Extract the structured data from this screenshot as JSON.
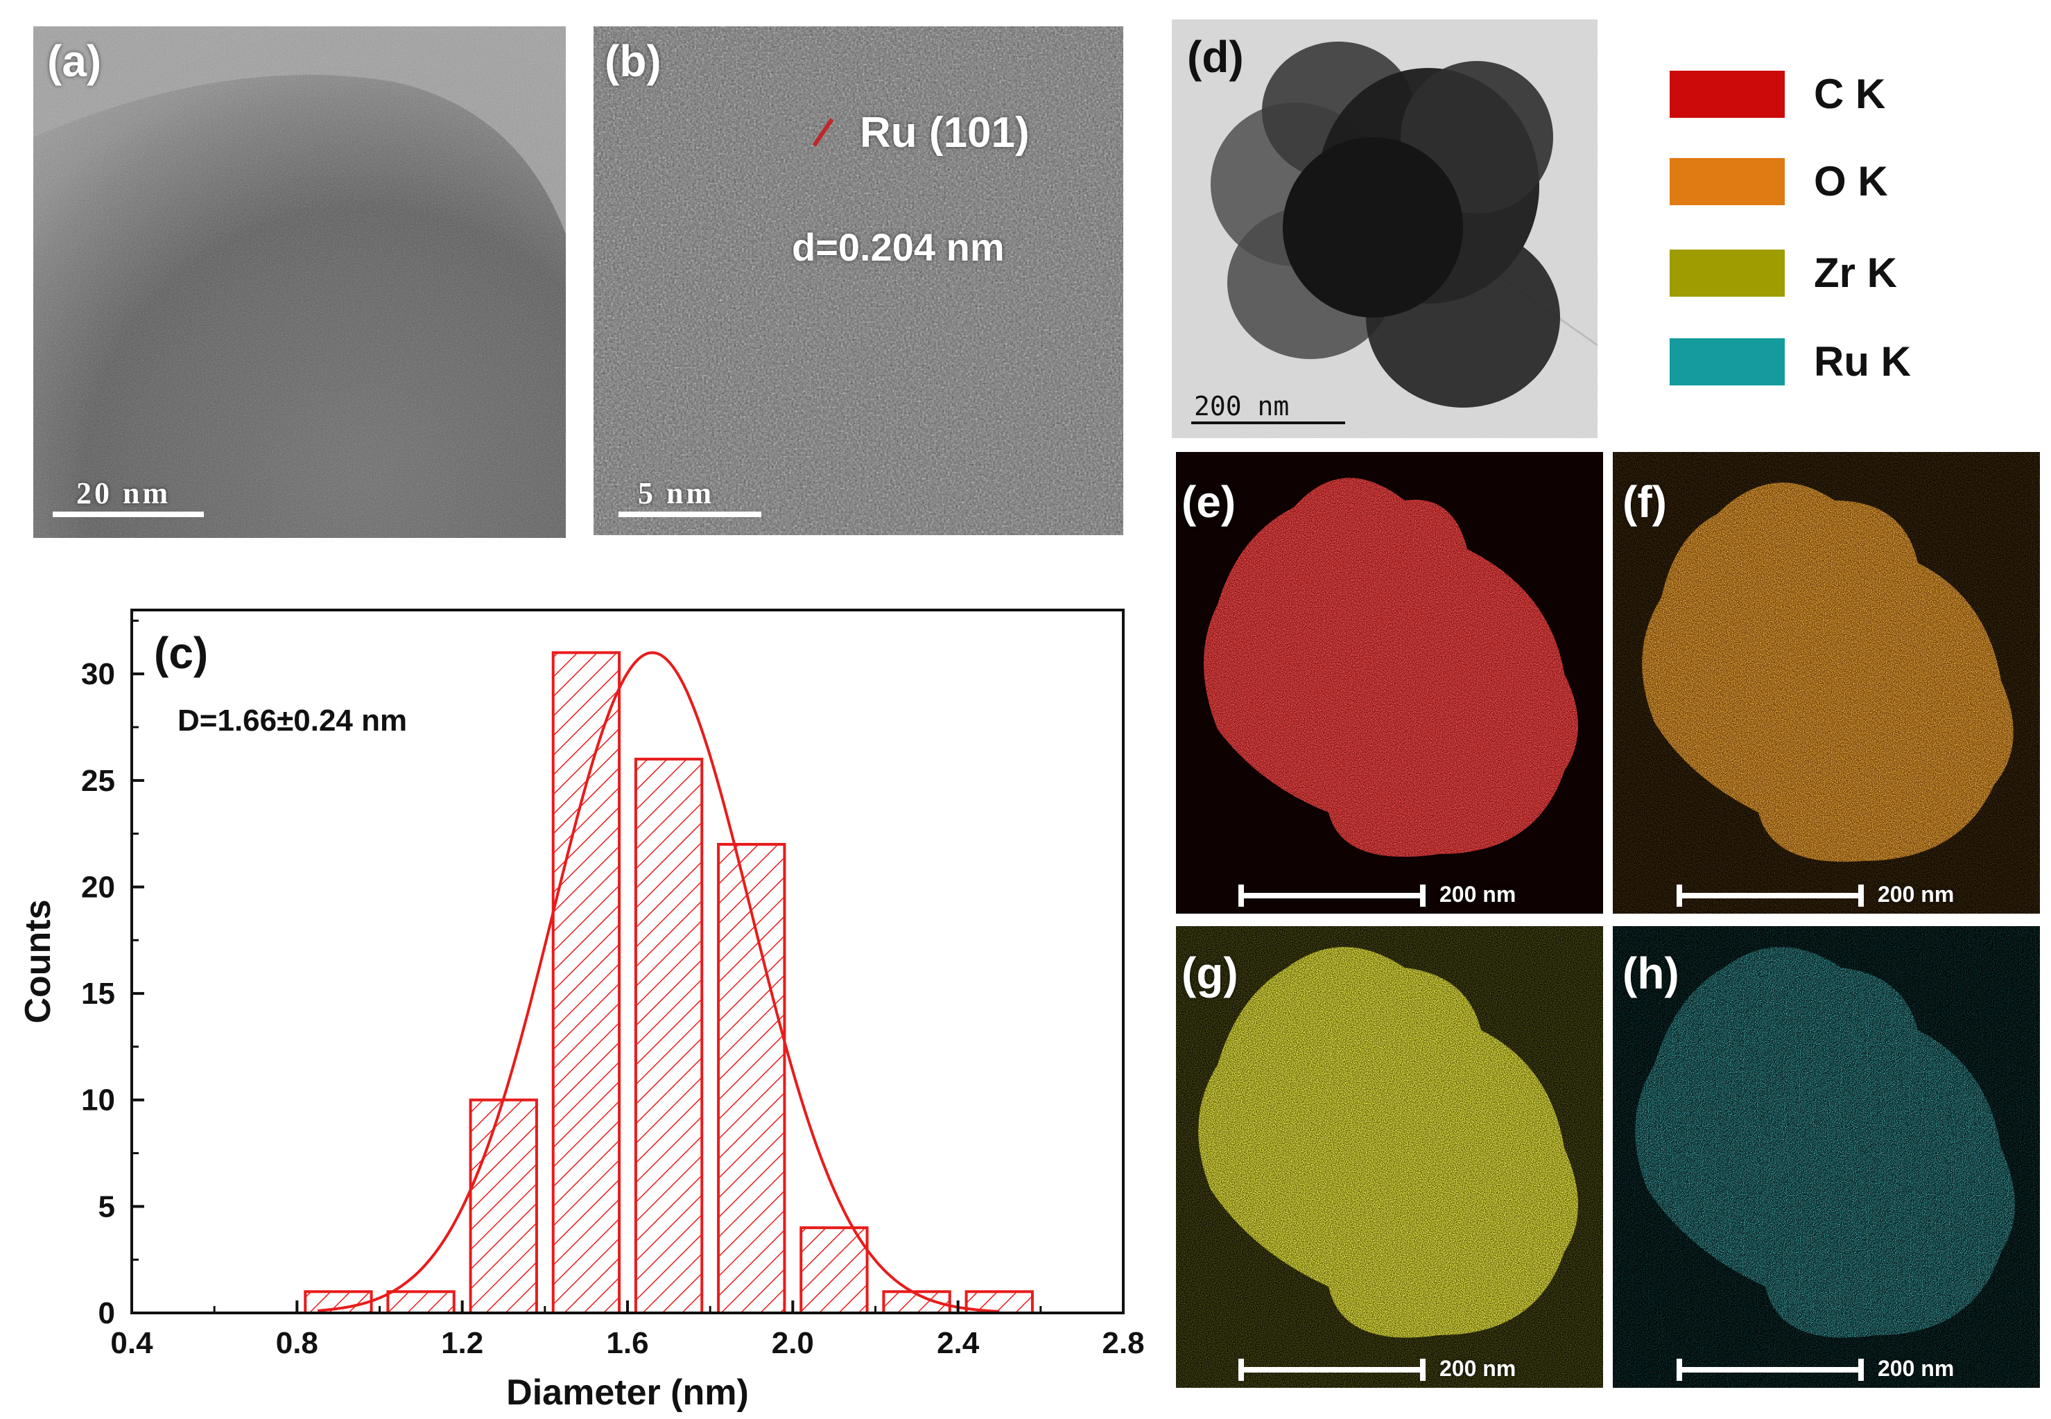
{
  "panels": {
    "a": {
      "label": "(a)",
      "scale": "20 nm"
    },
    "b": {
      "label": "(b)",
      "scale": "5 nm",
      "annotation": "Ru (101)",
      "spacing": "d=0.204 nm"
    },
    "d": {
      "label": "(d)",
      "scale": "200 nm"
    },
    "e": {
      "label": "(e)",
      "scale": "200 nm",
      "color": "#dd1b1b"
    },
    "f": {
      "label": "(f)",
      "scale": "200 nm",
      "color": "#e07a12"
    },
    "g": {
      "label": "(g)",
      "scale": "200 nm",
      "color": "#b5b318"
    },
    "h": {
      "label": "(h)",
      "scale": "200 nm",
      "color": "#1aa5a8"
    }
  },
  "legend": [
    {
      "label": "C K",
      "color": "#cc0a0a"
    },
    {
      "label": "O K",
      "color": "#e07a12"
    },
    {
      "label": "Zr K",
      "color": "#9e9c00"
    },
    {
      "label": "Ru K",
      "color": "#149b9e"
    }
  ],
  "chart_data": {
    "type": "bar",
    "panel_label": "(c)",
    "annotation": "D=1.66±0.24 nm",
    "xlabel": "Diameter (nm)",
    "ylabel": "Counts",
    "xlim": [
      0.4,
      2.8
    ],
    "ylim": [
      0,
      33
    ],
    "x_ticks": [
      "0.4",
      "0.8",
      "1.2",
      "1.6",
      "2.0",
      "2.4",
      "2.8"
    ],
    "y_ticks": [
      "0",
      "5",
      "10",
      "15",
      "20",
      "25",
      "30"
    ],
    "bin_width": 0.16,
    "bins": [
      {
        "center": 0.9,
        "count": 1
      },
      {
        "center": 1.1,
        "count": 1
      },
      {
        "center": 1.3,
        "count": 10
      },
      {
        "center": 1.5,
        "count": 31
      },
      {
        "center": 1.7,
        "count": 26
      },
      {
        "center": 1.9,
        "count": 22
      },
      {
        "center": 2.1,
        "count": 4
      },
      {
        "center": 2.3,
        "count": 1
      },
      {
        "center": 2.5,
        "count": 1
      }
    ],
    "fit": {
      "type": "gaussian",
      "mean": 1.66,
      "sigma": 0.24,
      "peak": 31
    },
    "color": "#e81c1c"
  }
}
